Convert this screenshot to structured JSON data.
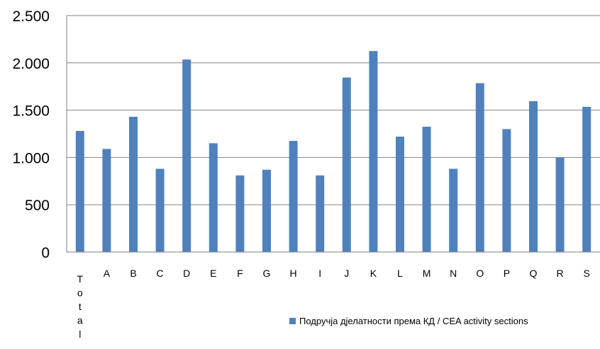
{
  "chart_data": {
    "type": "bar",
    "categories": [
      "Total",
      "A",
      "B",
      "C",
      "D",
      "E",
      "F",
      "G",
      "H",
      "I",
      "J",
      "K",
      "L",
      "M",
      "N",
      "O",
      "P",
      "Q",
      "R",
      "S"
    ],
    "series": [
      {
        "name": "Подручја дјелатности према КД / CEA activity sections",
        "color": "#4f81bd",
        "values": [
          1280,
          1090,
          1430,
          880,
          2035,
          1150,
          810,
          870,
          1175,
          810,
          1845,
          2125,
          1220,
          1325,
          880,
          1785,
          1300,
          1595,
          1000,
          1535
        ]
      }
    ],
    "ylim": [
      0,
      2500
    ],
    "yticks": [
      0,
      500,
      1000,
      1500,
      2000,
      2500
    ],
    "ytick_labels": [
      "0",
      "500",
      "1.000",
      "1.500",
      "2.000",
      "2.500"
    ],
    "grid": true,
    "legend_position": "bottom-right"
  }
}
